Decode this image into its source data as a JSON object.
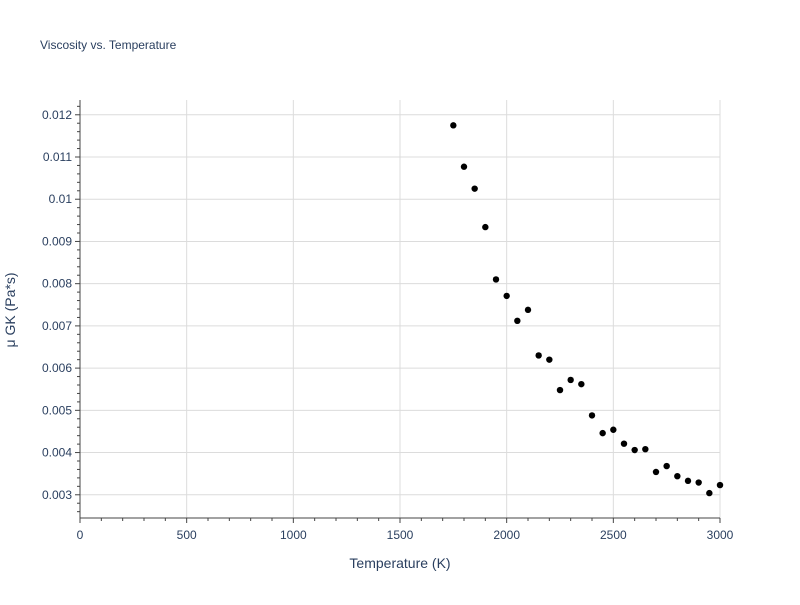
{
  "chart_data": {
    "type": "scatter",
    "title": "Viscosity vs. Temperature",
    "xlabel": "Temperature (K)",
    "ylabel": "μ GK (Pa*s)",
    "xlim": [
      0,
      3000
    ],
    "ylim": [
      0.00245,
      0.01235
    ],
    "grid": true,
    "legend": "none",
    "marker_color": "#000000",
    "x_ticks": [
      "0",
      "500",
      "1000",
      "1500",
      "2000",
      "2500",
      "3000"
    ],
    "x_tick_values": [
      0,
      500,
      1000,
      1500,
      2000,
      2500,
      3000
    ],
    "y_ticks": [
      "0.003",
      "0.004",
      "0.005",
      "0.006",
      "0.007",
      "0.008",
      "0.009",
      "0.01",
      "0.011",
      "0.012"
    ],
    "y_tick_values": [
      0.003,
      0.004,
      0.005,
      0.006,
      0.007,
      0.008,
      0.009,
      0.01,
      0.011,
      0.012
    ],
    "x": [
      1750,
      1800,
      1850,
      1900,
      1950,
      2000,
      2050,
      2100,
      2150,
      2200,
      2250,
      2300,
      2350,
      2400,
      2450,
      2500,
      2550,
      2600,
      2650,
      2700,
      2750,
      2800,
      2850,
      2900,
      2950,
      3000
    ],
    "y": [
      0.01175,
      0.01077,
      0.01025,
      0.00934,
      0.0081,
      0.00771,
      0.00712,
      0.00738,
      0.0063,
      0.0062,
      0.00548,
      0.00572,
      0.00562,
      0.00488,
      0.00446,
      0.00454,
      0.00421,
      0.00406,
      0.00408,
      0.00354,
      0.00368,
      0.00344,
      0.00333,
      0.00329,
      0.00304,
      0.00323
    ]
  }
}
